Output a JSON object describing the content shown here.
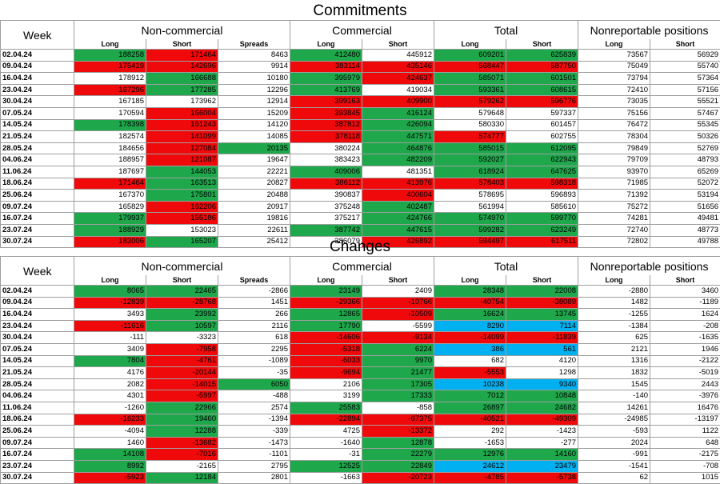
{
  "top_title": "Commitments",
  "bottom_title": "Changes",
  "headers": {
    "week": "Week",
    "groups": [
      "Non-commercial",
      "Commercial",
      "Total",
      "Nonreportable positions"
    ],
    "sub": [
      "Long",
      "Short",
      "Spreads",
      "Long",
      "Short",
      "Long",
      "Short",
      "Long",
      "Short"
    ]
  },
  "colors": {
    "g": "#1ea84b",
    "r": "#f0090a",
    "b": "#00b0f0"
  },
  "chart_data": [
    {
      "type": "table",
      "title": "Commitments",
      "columns": [
        "Week",
        "Non-commercial Long",
        "Non-commercial Short",
        "Spreads",
        "Commercial Long",
        "Commercial Short",
        "Total Long",
        "Total Short",
        "Nonreportable Long",
        "Nonreportable Short"
      ],
      "rows": [
        [
          "02.04.24",
          "188258",
          "171464",
          "8463",
          "412480",
          "445912",
          "609201",
          "625839",
          "73567",
          "56929"
        ],
        [
          "09.04.24",
          "175419",
          "142696",
          "9914",
          "383114",
          "435146",
          "568447",
          "587750",
          "75049",
          "55740"
        ],
        [
          "16.04.24",
          "178912",
          "166688",
          "10180",
          "395979",
          "424637",
          "585071",
          "601501",
          "73794",
          "57364"
        ],
        [
          "23.04.24",
          "167296",
          "177285",
          "12296",
          "413769",
          "419034",
          "593361",
          "608615",
          "72410",
          "57156"
        ],
        [
          "30.04.24",
          "167185",
          "173962",
          "12914",
          "399163",
          "409900",
          "579262",
          "596776",
          "73035",
          "55521"
        ],
        [
          "07.05.24",
          "170594",
          "166004",
          "15209",
          "393845",
          "416124",
          "579648",
          "597337",
          "75156",
          "57467"
        ],
        [
          "14.05.24",
          "178398",
          "161243",
          "14120",
          "387812",
          "426094",
          "580330",
          "601457",
          "76472",
          "55345"
        ],
        [
          "21.05.24",
          "182574",
          "141099",
          "14085",
          "378118",
          "447571",
          "574777",
          "602755",
          "78304",
          "50326"
        ],
        [
          "28.05.24",
          "184656",
          "127084",
          "20135",
          "380224",
          "464876",
          "585015",
          "612095",
          "79849",
          "52769"
        ],
        [
          "04.06.24",
          "188957",
          "121087",
          "19647",
          "383423",
          "482209",
          "592027",
          "622943",
          "79709",
          "48793"
        ],
        [
          "11.06.24",
          "187697",
          "144053",
          "22221",
          "409006",
          "481351",
          "618924",
          "647625",
          "93970",
          "65269"
        ],
        [
          "18.06.24",
          "171464",
          "163513",
          "20827",
          "386112",
          "413976",
          "578403",
          "598318",
          "71985",
          "52072"
        ],
        [
          "25.06.24",
          "167370",
          "175801",
          "20488",
          "390837",
          "400604",
          "578695",
          "596893",
          "71392",
          "53194"
        ],
        [
          "09.07.24",
          "165829",
          "162206",
          "20917",
          "375248",
          "402487",
          "561994",
          "585610",
          "75272",
          "51656"
        ],
        [
          "16.07.24",
          "179937",
          "155186",
          "19816",
          "375217",
          "424766",
          "574970",
          "599770",
          "74281",
          "49481"
        ],
        [
          "23.07.24",
          "188929",
          "153023",
          "22611",
          "387742",
          "447615",
          "599282",
          "623249",
          "72740",
          "48773"
        ],
        [
          "30.07.24",
          "183006",
          "165207",
          "25412",
          "386079",
          "426892",
          "594497",
          "617511",
          "72802",
          "49788"
        ]
      ],
      "cell_colors": [
        [
          "g",
          "r",
          "",
          "g",
          "",
          "g",
          "g",
          "",
          ""
        ],
        [
          "r",
          "r",
          "",
          "r",
          "r",
          "r",
          "r",
          "",
          ""
        ],
        [
          "",
          "g",
          "",
          "g",
          "r",
          "g",
          "g",
          "",
          ""
        ],
        [
          "r",
          "g",
          "",
          "g",
          "",
          "g",
          "g",
          "",
          ""
        ],
        [
          "",
          "",
          "",
          "r",
          "r",
          "r",
          "r",
          "",
          ""
        ],
        [
          "",
          "r",
          "",
          "r",
          "g",
          "",
          "",
          "",
          ""
        ],
        [
          "g",
          "r",
          "",
          "r",
          "g",
          "",
          "",
          "",
          ""
        ],
        [
          "",
          "r",
          "",
          "r",
          "g",
          "r",
          "",
          "",
          ""
        ],
        [
          "",
          "r",
          "g",
          "",
          "g",
          "g",
          "g",
          "",
          ""
        ],
        [
          "",
          "r",
          "",
          "",
          "g",
          "g",
          "g",
          "",
          ""
        ],
        [
          "",
          "g",
          "",
          "g",
          "",
          "g",
          "g",
          "",
          ""
        ],
        [
          "r",
          "g",
          "",
          "r",
          "r",
          "r",
          "r",
          "",
          ""
        ],
        [
          "",
          "g",
          "",
          "",
          "r",
          "",
          "",
          "",
          ""
        ],
        [
          "",
          "r",
          "",
          "",
          "g",
          "",
          "",
          "",
          ""
        ],
        [
          "g",
          "r",
          "",
          "",
          "g",
          "g",
          "g",
          "",
          ""
        ],
        [
          "g",
          "",
          "",
          "g",
          "g",
          "g",
          "g",
          "",
          ""
        ],
        [
          "r",
          "g",
          "",
          "",
          "r",
          "r",
          "r",
          "",
          ""
        ]
      ]
    },
    {
      "type": "table",
      "title": "Changes",
      "columns": [
        "Week",
        "Non-commercial Long",
        "Non-commercial Short",
        "Spreads",
        "Commercial Long",
        "Commercial Short",
        "Total Long",
        "Total Short",
        "Nonreportable Long",
        "Nonreportable Short"
      ],
      "rows": [
        [
          "02.04.24",
          "8065",
          "22465",
          "-2866",
          "23149",
          "2409",
          "28348",
          "22008",
          "-2880",
          "3460"
        ],
        [
          "09.04.24",
          "-12839",
          "-28768",
          "1451",
          "-29366",
          "-10766",
          "-40754",
          "-38089",
          "1482",
          "-1189"
        ],
        [
          "16.04.24",
          "3493",
          "23992",
          "266",
          "12865",
          "-10509",
          "16624",
          "13745",
          "-1255",
          "1624"
        ],
        [
          "23.04.24",
          "-11616",
          "10597",
          "2116",
          "17790",
          "-5599",
          "8290",
          "7114",
          "-1384",
          "-208"
        ],
        [
          "30.04.24",
          "-111",
          "-3323",
          "618",
          "-14606",
          "-9134",
          "-14099",
          "-11839",
          "625",
          "-1635"
        ],
        [
          "07.05.24",
          "3409",
          "-7958",
          "2295",
          "-5318",
          "6224",
          "386",
          "561",
          "2121",
          "1946"
        ],
        [
          "14.05.24",
          "7804",
          "-4761",
          "-1089",
          "-6033",
          "9970",
          "682",
          "4120",
          "1316",
          "-2122"
        ],
        [
          "21.05.24",
          "4176",
          "-20144",
          "-35",
          "-9694",
          "21477",
          "-5553",
          "1298",
          "1832",
          "-5019"
        ],
        [
          "28.05.24",
          "2082",
          "-14015",
          "6050",
          "2106",
          "17305",
          "10238",
          "9340",
          "1545",
          "2443"
        ],
        [
          "04.06.24",
          "4301",
          "-5997",
          "-488",
          "3199",
          "17333",
          "7012",
          "10848",
          "-140",
          "-3976"
        ],
        [
          "11.06.24",
          "-1260",
          "22966",
          "2574",
          "25583",
          "-858",
          "26897",
          "24682",
          "14261",
          "16476"
        ],
        [
          "18.06.24",
          "-16233",
          "19460",
          "-1394",
          "-22894",
          "-67375",
          "-40521",
          "-49309",
          "-24985",
          "-13197"
        ],
        [
          "25.06.24",
          "-4094",
          "12288",
          "-339",
          "4725",
          "-13372",
          "292",
          "-1423",
          "-593",
          "1122"
        ],
        [
          "09.07.24",
          "1460",
          "-13682",
          "-1473",
          "-1640",
          "12878",
          "-1653",
          "-277",
          "2024",
          "648"
        ],
        [
          "16.07.24",
          "14108",
          "-7016",
          "-1101",
          "-31",
          "22279",
          "12976",
          "14160",
          "-991",
          "-2175"
        ],
        [
          "23.07.24",
          "8992",
          "-2165",
          "2795",
          "12525",
          "22849",
          "24612",
          "23479",
          "-1541",
          "-708"
        ],
        [
          "30.07.24",
          "-5923",
          "12184",
          "2801",
          "-1663",
          "-20723",
          "-4785",
          "-5738",
          "62",
          "1015"
        ]
      ],
      "cell_colors": [
        [
          "g",
          "g",
          "",
          "g",
          "",
          "g",
          "g",
          "",
          ""
        ],
        [
          "r",
          "r",
          "",
          "r",
          "r",
          "r",
          "r",
          "",
          ""
        ],
        [
          "",
          "g",
          "",
          "g",
          "r",
          "g",
          "g",
          "",
          ""
        ],
        [
          "r",
          "g",
          "",
          "g",
          "",
          "b",
          "b",
          "",
          ""
        ],
        [
          "",
          "",
          "",
          "r",
          "r",
          "r",
          "r",
          "",
          ""
        ],
        [
          "",
          "r",
          "",
          "r",
          "g",
          "b",
          "b",
          "",
          ""
        ],
        [
          "g",
          "r",
          "",
          "r",
          "g",
          "",
          "",
          "",
          ""
        ],
        [
          "",
          "r",
          "",
          "r",
          "g",
          "r",
          "",
          "",
          ""
        ],
        [
          "",
          "r",
          "g",
          "",
          "g",
          "b",
          "b",
          "",
          ""
        ],
        [
          "",
          "r",
          "",
          "",
          "g",
          "g",
          "g",
          "",
          ""
        ],
        [
          "",
          "g",
          "",
          "g",
          "",
          "g",
          "g",
          "",
          ""
        ],
        [
          "r",
          "g",
          "",
          "r",
          "r",
          "r",
          "r",
          "",
          ""
        ],
        [
          "",
          "g",
          "",
          "",
          "r",
          "",
          "",
          "",
          ""
        ],
        [
          "",
          "r",
          "",
          "",
          "g",
          "",
          "",
          "",
          ""
        ],
        [
          "g",
          "r",
          "",
          "",
          "g",
          "g",
          "g",
          "",
          ""
        ],
        [
          "g",
          "",
          "",
          "g",
          "g",
          "b",
          "b",
          "",
          ""
        ],
        [
          "r",
          "g",
          "",
          "",
          "r",
          "r",
          "r",
          "",
          ""
        ]
      ]
    }
  ]
}
